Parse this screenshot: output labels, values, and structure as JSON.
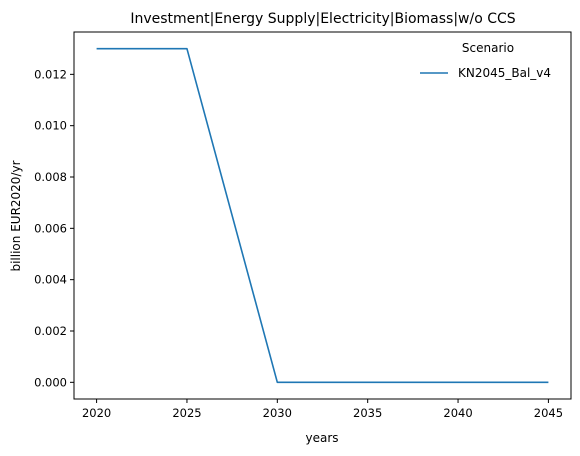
{
  "chart_data": {
    "type": "line",
    "title": "Investment|Energy Supply|Electricity|Biomass|w/o CCS",
    "xlabel": "years",
    "ylabel": "billion EUR2020/yr",
    "x": [
      2020,
      2025,
      2030,
      2035,
      2040,
      2045
    ],
    "series": [
      {
        "name": "KN2045_Bal_v4",
        "color": "#1f77b4",
        "values": [
          0.013,
          0.013,
          0.0,
          0.0,
          0.0,
          0.0
        ]
      }
    ],
    "xlim": [
      2018.75,
      2046.25
    ],
    "ylim": [
      -0.00065,
      0.01365
    ],
    "xticks": [
      2020,
      2025,
      2030,
      2035,
      2040,
      2045
    ],
    "xtick_labels": [
      "2020",
      "2025",
      "2030",
      "2035",
      "2040",
      "2045"
    ],
    "yticks": [
      0.0,
      0.002,
      0.004,
      0.006,
      0.008,
      0.01,
      0.012
    ],
    "ytick_labels": [
      "0.000",
      "0.002",
      "0.004",
      "0.006",
      "0.008",
      "0.010",
      "0.012"
    ],
    "legend": {
      "title": "Scenario",
      "placement": "upper-right"
    },
    "grid": false
  }
}
